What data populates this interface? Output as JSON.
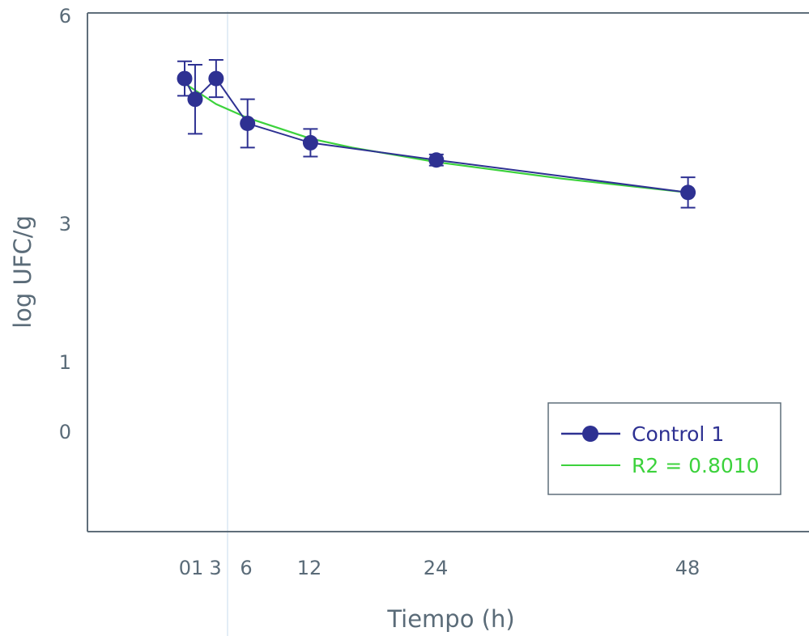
{
  "chart_data": {
    "type": "line",
    "title": "",
    "xlabel": "Tiempo (h)",
    "ylabel": "log UFC/g",
    "x_tick_labels": [
      "01",
      "3",
      "6",
      "12",
      "24",
      "48"
    ],
    "y_tick_labels": [
      "6",
      "3",
      "1",
      "0"
    ],
    "y_tick_values": [
      6,
      3,
      1,
      0
    ],
    "xlim": [
      -9,
      60
    ],
    "series": [
      {
        "name": "Control 1",
        "color": "#2e3192",
        "x": [
          0,
          1,
          3,
          6,
          12,
          24,
          48
        ],
        "y": [
          5.05,
          4.75,
          5.05,
          4.4,
          4.12,
          3.87,
          3.4
        ],
        "err": [
          0.25,
          0.5,
          0.27,
          0.35,
          0.2,
          0.08,
          0.22
        ]
      },
      {
        "name": "R2 = 0.8010",
        "color": "#3cd23c",
        "type": "trend",
        "x": [
          0,
          3,
          6,
          12,
          16,
          24,
          36,
          48
        ],
        "y": [
          4.98,
          4.68,
          4.48,
          4.18,
          4.05,
          3.84,
          3.6,
          3.4
        ]
      }
    ],
    "legend": {
      "position": "bottom-right"
    },
    "grid": false
  }
}
